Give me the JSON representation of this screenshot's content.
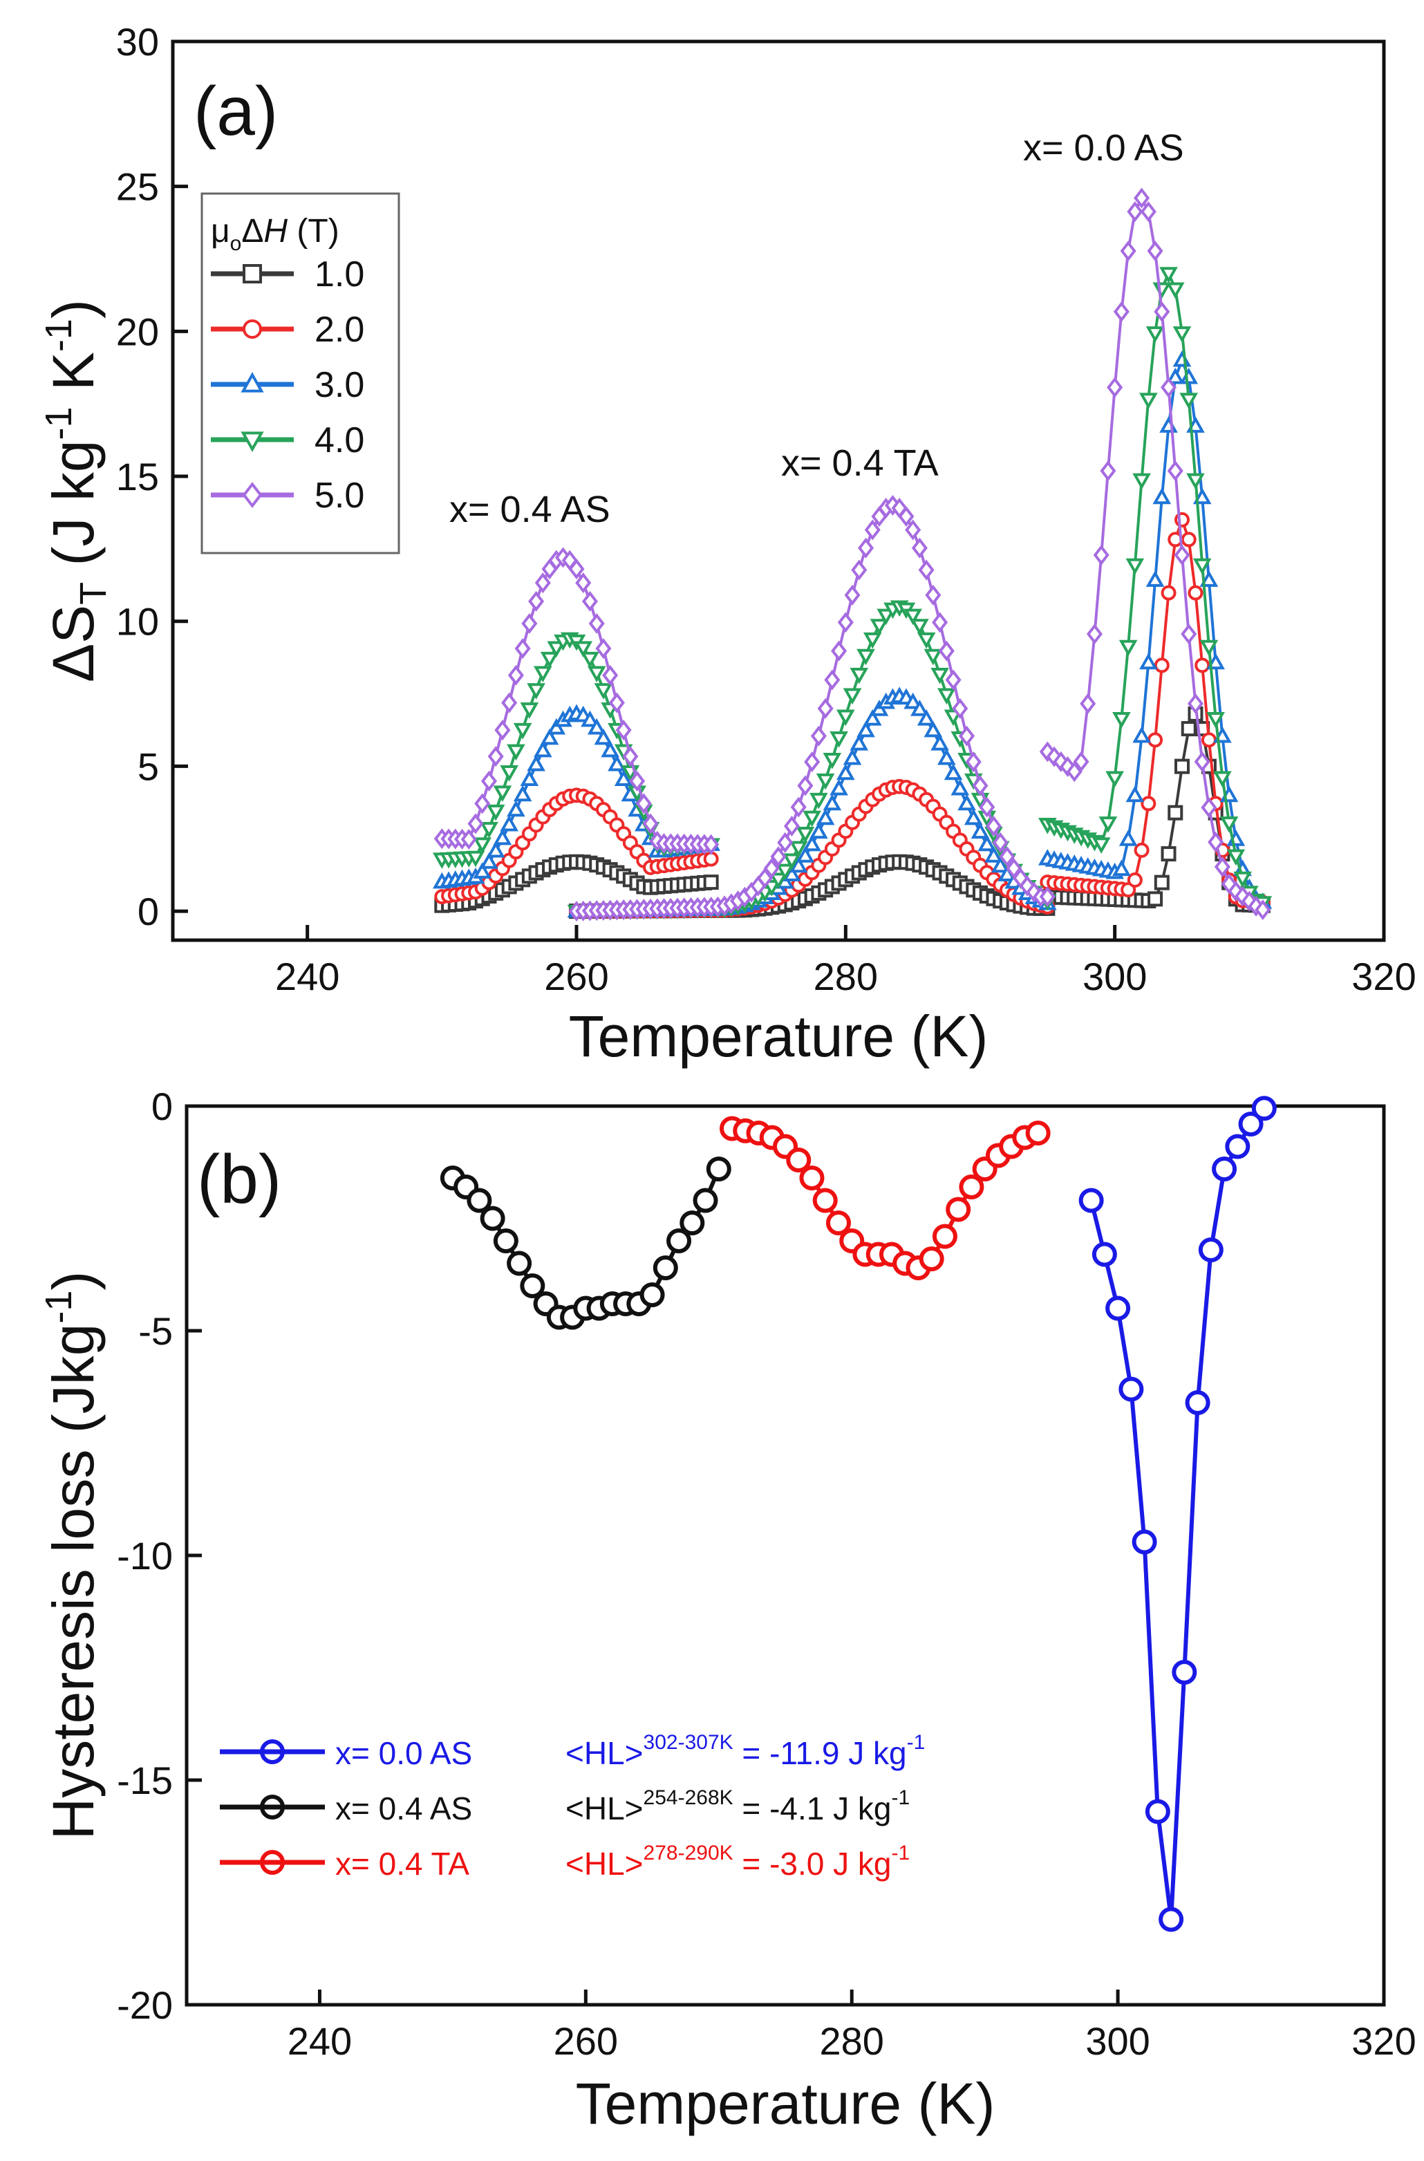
{
  "chart_data": [
    {
      "panel": "(a)",
      "type": "scatter",
      "xlabel": "Temperature (K)",
      "ylabel": "ΔS_T (J kg^-1 K^-1)",
      "xlim": [
        230,
        320
      ],
      "ylim": [
        -1,
        30
      ],
      "xticks": [
        "240",
        "260",
        "280",
        "300",
        "320"
      ],
      "yticks": [
        "0",
        "5",
        "10",
        "15",
        "20",
        "25",
        "30"
      ],
      "legend": {
        "title": "μoΔH (T)",
        "position": "top-left",
        "entries": [
          {
            "label": "1.0",
            "color": "#3a3a3a",
            "marker": "square"
          },
          {
            "label": "2.0",
            "color": "#ee2a2a",
            "marker": "circle"
          },
          {
            "label": "3.0",
            "color": "#1f74d6",
            "marker": "triangle-up"
          },
          {
            "label": "4.0",
            "color": "#27a35a",
            "marker": "triangle-down"
          },
          {
            "label": "5.0",
            "color": "#a66be0",
            "marker": "diamond"
          }
        ]
      },
      "annotations": [
        "x= 0.4 AS",
        "x= 0.4 TA",
        "x= 0.0 AS"
      ],
      "sample_ranges": {
        "x0.4_AS": [
          250,
          270
        ],
        "x0.4_TA": [
          260,
          295
        ],
        "x0.0_AS": [
          295,
          311
        ]
      },
      "series": [
        {
          "name": "1.0",
          "color": "#3a3a3a",
          "marker": "square",
          "x0.4_AS": {
            "peak_T": 260,
            "peak": 1.7,
            "width": 6,
            "start": 0.2,
            "end": 1.0
          },
          "x0.4_TA": {
            "peak_T": 284,
            "peak": 1.7,
            "width": 6,
            "start": 0.0,
            "end": 0.1
          },
          "x0.0_AS": {
            "peak_T": 306,
            "peak": 6.8,
            "width": 1.8,
            "start": 0.5,
            "end": 0.2
          }
        },
        {
          "name": "2.0",
          "color": "#ee2a2a",
          "marker": "circle",
          "x0.4_AS": {
            "peak_T": 260,
            "peak": 4.0,
            "width": 5.5,
            "start": 0.5,
            "end": 1.8
          },
          "x0.4_TA": {
            "peak_T": 284,
            "peak": 4.3,
            "width": 6,
            "start": 0.0,
            "end": 0.1
          },
          "x0.0_AS": {
            "peak_T": 305,
            "peak": 13.5,
            "width": 2.2,
            "start": 1.0,
            "end": 0.3
          }
        },
        {
          "name": "3.0",
          "color": "#1f74d6",
          "marker": "triangle-up",
          "x0.4_AS": {
            "peak_T": 260,
            "peak": 6.8,
            "width": 5.5,
            "start": 1.0,
            "end": 2.3
          },
          "x0.4_TA": {
            "peak_T": 284,
            "peak": 7.4,
            "width": 6,
            "start": 0.0,
            "end": 0.2
          },
          "x0.0_AS": {
            "peak_T": 305,
            "peak": 19,
            "width": 2.8,
            "start": 1.8,
            "end": 0.3
          }
        },
        {
          "name": "4.0",
          "color": "#27a35a",
          "marker": "triangle-down",
          "x0.4_AS": {
            "peak_T": 259.5,
            "peak": 9.4,
            "width": 5.5,
            "start": 1.8,
            "end": 2.3
          },
          "x0.4_TA": {
            "peak_T": 284,
            "peak": 10.5,
            "width": 6,
            "start": 0.0,
            "end": 0.3
          },
          "x0.0_AS": {
            "peak_T": 304,
            "peak": 22,
            "width": 3.2,
            "start": 3.0,
            "end": 0.3
          }
        },
        {
          "name": "5.0",
          "color": "#a66be0",
          "marker": "diamond",
          "x0.4_AS": {
            "peak_T": 259,
            "peak": 12.2,
            "width": 5.5,
            "start": 2.5,
            "end": 2.3
          },
          "x0.4_TA": {
            "peak_T": 283.5,
            "peak": 14.0,
            "width": 6,
            "start": 0.0,
            "end": 0.5
          },
          "x0.0_AS": {
            "peak_T": 302,
            "peak": 24.6,
            "width": 3.6,
            "start": 5.5,
            "end": 0.0
          }
        }
      ]
    },
    {
      "panel": "(b)",
      "type": "line",
      "xlabel": "Temperature (K)",
      "ylabel": "Hysteresis loss (Jkg^-1)",
      "xlim": [
        230,
        320
      ],
      "ylim": [
        -20,
        0
      ],
      "xticks": [
        "240",
        "260",
        "280",
        "300",
        "320"
      ],
      "yticks": [
        "0",
        "-5",
        "-10",
        "-15",
        "-20"
      ],
      "legend_position": "bottom-left",
      "series": [
        {
          "name": "x= 0.0 AS",
          "color": "#1a1ae6",
          "hl_label": "<HL>",
          "hl_range": "302-307K",
          "hl_value": "= -11.9 J kg",
          "hl_unit_exp": "-1",
          "x": [
            298,
            299,
            300,
            301,
            302,
            303,
            304,
            305,
            306,
            307,
            308,
            309,
            310,
            311
          ],
          "y": [
            -2.1,
            -3.3,
            -4.5,
            -6.3,
            -9.7,
            -15.7,
            -18.1,
            -12.6,
            -6.6,
            -3.2,
            -1.4,
            -0.9,
            -0.4,
            -0.05
          ]
        },
        {
          "name": "x= 0.4 AS",
          "color": "#111111",
          "hl_label": "<HL>",
          "hl_range": "254-268K",
          "hl_value": "= -4.1 J kg",
          "hl_unit_exp": "-1",
          "x": [
            250,
            251,
            252,
            253,
            254,
            255,
            256,
            257,
            258,
            259,
            260,
            261,
            262,
            263,
            264,
            265,
            266,
            267,
            268,
            269,
            270
          ],
          "y": [
            -1.6,
            -1.8,
            -2.1,
            -2.5,
            -3.0,
            -3.5,
            -4.0,
            -4.4,
            -4.7,
            -4.7,
            -4.5,
            -4.5,
            -4.4,
            -4.4,
            -4.4,
            -4.2,
            -3.6,
            -3.0,
            -2.6,
            -2.1,
            -1.4
          ]
        },
        {
          "name": "x= 0.4 TA",
          "color": "#ee1111",
          "hl_label": "<HL>",
          "hl_range": "278-290K",
          "hl_value": "= -3.0 J kg",
          "hl_unit_exp": "-1",
          "x": [
            271,
            272,
            273,
            274,
            275,
            276,
            277,
            278,
            279,
            280,
            281,
            282,
            283,
            284,
            285,
            286,
            287,
            288,
            289,
            290,
            291,
            292,
            293,
            294
          ],
          "y": [
            -0.5,
            -0.55,
            -0.6,
            -0.7,
            -0.9,
            -1.2,
            -1.6,
            -2.1,
            -2.6,
            -3.0,
            -3.3,
            -3.3,
            -3.3,
            -3.5,
            -3.6,
            -3.4,
            -2.9,
            -2.3,
            -1.8,
            -1.4,
            -1.1,
            -0.9,
            -0.7,
            -0.6
          ]
        }
      ]
    }
  ]
}
